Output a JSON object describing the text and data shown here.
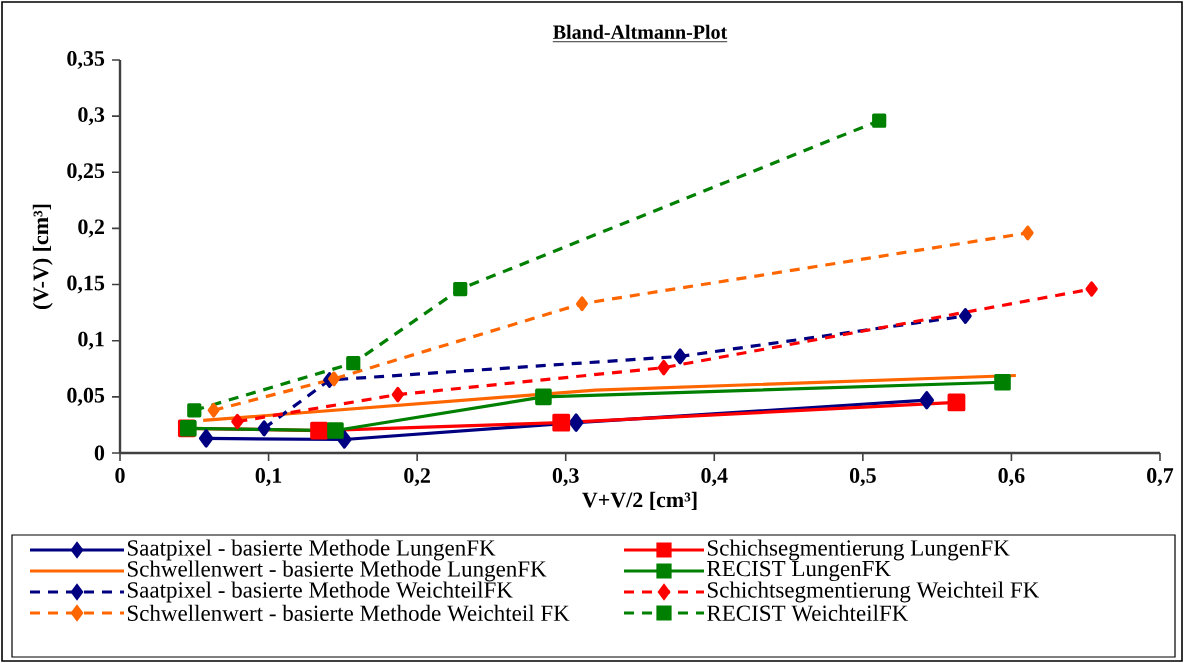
{
  "chart_data": {
    "type": "line",
    "title": "Bland-Altmann-Plot",
    "xlabel": "V+V/2 [cm³]",
    "ylabel": "(V-V)  [cm³]",
    "xlim": [
      0,
      0.7
    ],
    "ylim": [
      0,
      0.35
    ],
    "xticks": [
      0,
      {
        "value": 0.1,
        "label": "0,1"
      },
      {
        "value": 0.2,
        "label": "0,2"
      },
      {
        "value": 0.3,
        "label": "0,3"
      },
      {
        "value": 0.4,
        "label": "0,4"
      },
      {
        "value": 0.5,
        "label": "0,5"
      },
      {
        "value": 0.6,
        "label": "0,6"
      },
      {
        "value": 0.7,
        "label": "0,7"
      }
    ],
    "yticks": [
      0,
      {
        "value": 0.05,
        "label": "0,05"
      },
      {
        "value": 0.1,
        "label": "0,1"
      },
      {
        "value": 0.15,
        "label": "0,15"
      },
      {
        "value": 0.2,
        "label": "0,2"
      },
      {
        "value": 0.25,
        "label": "0,25"
      },
      {
        "value": 0.3,
        "label": "0,3"
      },
      {
        "value": 0.35,
        "label": "0,35"
      }
    ],
    "grid": false,
    "legend": "bottom",
    "series": [
      {
        "name": "Saatpixel - basierte Methode LungenFK",
        "color": "#000080",
        "marker": "diamond",
        "line_style": "solid",
        "x": [
          0.058,
          0.151,
          0.307,
          0.543
        ],
        "values": [
          0.013,
          0.012,
          0.027,
          0.047
        ]
      },
      {
        "name": "Schichsegmentierung LungenFK",
        "color": "#ff0000",
        "marker": "square",
        "line_style": "solid",
        "x": [
          0.045,
          0.134,
          0.297,
          0.563
        ],
        "values": [
          0.022,
          0.02,
          0.027,
          0.045
        ]
      },
      {
        "name": "Schwellenwert - basierte Methode LungenFK",
        "color": "#ff6600",
        "marker": "none",
        "line_style": "solid",
        "x": [
          0.056,
          0.32,
          0.603
        ],
        "values": [
          0.029,
          0.056,
          0.069
        ]
      },
      {
        "name": "RECIST  LungenFK",
        "color": "#008000",
        "marker": "square",
        "line_style": "solid",
        "x": [
          0.046,
          0.145,
          0.285,
          0.594
        ],
        "values": [
          0.022,
          0.02,
          0.05,
          0.063
        ]
      },
      {
        "name": "Saatpixel - basierte Methode WeichteilFK",
        "color": "#000080",
        "marker": "diamond",
        "line_style": "dashed",
        "x": [
          0.097,
          0.141,
          0.377,
          0.569
        ],
        "values": [
          0.022,
          0.065,
          0.086,
          0.122
        ]
      },
      {
        "name": "Schichtsegmentierung Weichteil FK",
        "color": "#ff0000",
        "marker": "diamond",
        "line_style": "dashed",
        "x": [
          0.079,
          0.187,
          0.366,
          0.654
        ],
        "values": [
          0.028,
          0.052,
          0.076,
          0.146
        ]
      },
      {
        "name": "Schwellenwert - basierte Methode Weichteil FK",
        "color": "#ff6600",
        "marker": "diamond",
        "line_style": "dashed",
        "x": [
          0.063,
          0.144,
          0.311,
          0.611
        ],
        "values": [
          0.038,
          0.066,
          0.133,
          0.196
        ]
      },
      {
        "name": "RECIST  WeichteilFK",
        "color": "#008000",
        "marker": "square",
        "line_style": "dashed",
        "x": [
          0.05,
          0.157,
          0.229,
          0.511
        ],
        "values": [
          0.038,
          0.08,
          0.146,
          0.296
        ]
      }
    ]
  }
}
